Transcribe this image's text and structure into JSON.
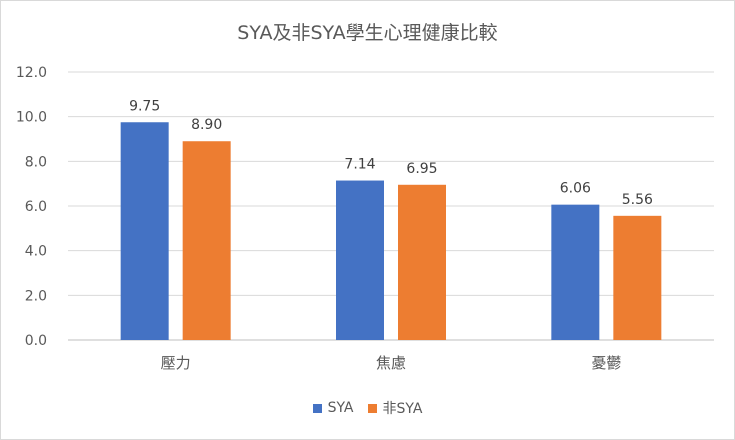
{
  "chart_data": {
    "type": "bar",
    "title": "SYA及非SYA學生心理健康比較",
    "categories": [
      "壓力",
      "焦慮",
      "憂鬱"
    ],
    "series": [
      {
        "name": "SYA",
        "values": [
          9.75,
          7.14,
          6.06
        ],
        "color": "#4472c4"
      },
      {
        "name": "非SYA",
        "values": [
          8.9,
          6.95,
          5.56
        ],
        "color": "#ed7d31"
      }
    ],
    "ylim": [
      0,
      12
    ],
    "yticks": [
      "0.0",
      "2.0",
      "4.0",
      "6.0",
      "8.0",
      "10.0",
      "12.0"
    ],
    "grid": true,
    "legend_position": "bottom"
  }
}
